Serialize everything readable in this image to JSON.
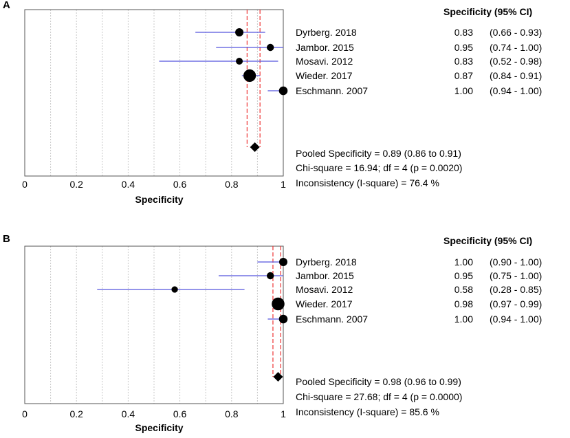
{
  "chart_data": [
    {
      "type": "forest",
      "panel_label": "A",
      "column_header": "Specificity (95% CI)",
      "xlabel": "Specificity",
      "xlim": [
        0,
        1
      ],
      "x_tick_labels": [
        "0",
        "0.2",
        "0.4",
        "0.6",
        "0.8",
        "1"
      ],
      "x_tick_values": [
        0,
        0.2,
        0.4,
        0.6,
        0.8,
        1
      ],
      "studies": [
        {
          "label": "Dyrberg. 2018",
          "estimate": 0.83,
          "lower": 0.66,
          "upper": 0.93,
          "est_text": "0.83",
          "ci_text": "(0.66 - 0.93)",
          "weight": 1.0
        },
        {
          "label": "Jambor. 2015",
          "estimate": 0.95,
          "lower": 0.74,
          "upper": 1.0,
          "est_text": "0.95",
          "ci_text": "(0.74 - 1.00)",
          "weight": 0.75
        },
        {
          "label": "Mosavi. 2012",
          "estimate": 0.83,
          "lower": 0.52,
          "upper": 0.98,
          "est_text": "0.83",
          "ci_text": "(0.52 - 0.98)",
          "weight": 0.7
        },
        {
          "label": "Wieder. 2017",
          "estimate": 0.87,
          "lower": 0.84,
          "upper": 0.91,
          "est_text": "0.87",
          "ci_text": "(0.84 - 0.91)",
          "weight": 2.3
        },
        {
          "label": "Eschmann. 2007",
          "estimate": 1.0,
          "lower": 0.94,
          "upper": 1.0,
          "est_text": "1.00",
          "ci_text": "(0.94 - 1.00)",
          "weight": 1.1
        }
      ],
      "pooled": {
        "estimate": 0.89,
        "lower": 0.86,
        "upper": 0.91
      },
      "stats": [
        "Pooled Specificity = 0.89 (0.86 to 0.91)",
        "Chi-square = 16.94; df =  4 (p = 0.0020)",
        "Inconsistency (I-square) = 76.4 %"
      ]
    },
    {
      "type": "forest",
      "panel_label": "B",
      "column_header": "Specificity (95% CI)",
      "xlabel": "Specificity",
      "xlim": [
        0,
        1
      ],
      "x_tick_labels": [
        "0",
        "0.2",
        "0.4",
        "0.6",
        "0.8",
        "1"
      ],
      "x_tick_values": [
        0,
        0.2,
        0.4,
        0.6,
        0.8,
        1
      ],
      "studies": [
        {
          "label": "Dyrberg. 2018",
          "estimate": 1.0,
          "lower": 0.9,
          "upper": 1.0,
          "est_text": "1.00",
          "ci_text": "(0.90 - 1.00)",
          "weight": 1.0
        },
        {
          "label": "Jambor. 2015",
          "estimate": 0.95,
          "lower": 0.75,
          "upper": 1.0,
          "est_text": "0.95",
          "ci_text": "(0.75 - 1.00)",
          "weight": 0.75
        },
        {
          "label": "Mosavi. 2012",
          "estimate": 0.58,
          "lower": 0.28,
          "upper": 0.85,
          "est_text": "0.58",
          "ci_text": "(0.28 - 0.85)",
          "weight": 0.6
        },
        {
          "label": "Wieder. 2017",
          "estimate": 0.98,
          "lower": 0.97,
          "upper": 0.99,
          "est_text": "0.98",
          "ci_text": "(0.97 - 0.99)",
          "weight": 2.4
        },
        {
          "label": "Eschmann. 2007",
          "estimate": 1.0,
          "lower": 0.94,
          "upper": 1.0,
          "est_text": "1.00",
          "ci_text": "(0.94 - 1.00)",
          "weight": 1.1
        }
      ],
      "pooled": {
        "estimate": 0.98,
        "lower": 0.96,
        "upper": 0.99
      },
      "stats": [
        "Pooled Specificity = 0.98 (0.96 to 0.99)",
        "Chi-square = 27.68; df =  4 (p = 0.0000)",
        "Inconsistency (I-square) = 85.6 %"
      ]
    }
  ],
  "colors": {
    "ci_line": "#5555dd",
    "point": "#000000",
    "pooled_line": "#ee3333",
    "grid": "#c8c8c8",
    "frame": "#555555",
    "text": "#000000"
  }
}
